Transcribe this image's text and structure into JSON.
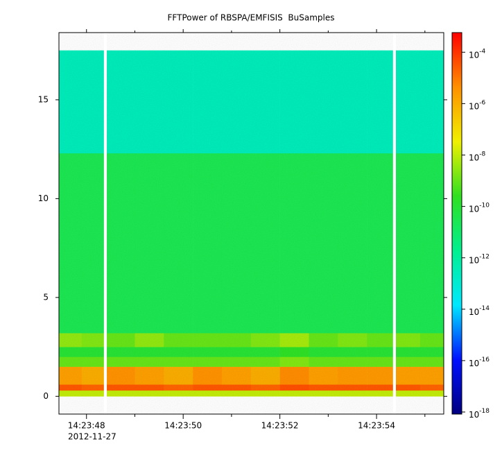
{
  "chart_data": {
    "type": "spectrogram",
    "title": "FFTPower of RBSPA/EMFISIS  BuSamples",
    "x_sublabel": "2012-11-27",
    "xlim": [
      47.43,
      55.39
    ],
    "xticks": [
      {
        "value": 48,
        "label": "14:23:48"
      },
      {
        "value": 50,
        "label": "14:23:50"
      },
      {
        "value": 52,
        "label": "14:23:52"
      },
      {
        "value": 54,
        "label": "14:23:54"
      }
    ],
    "xminorticks": [
      49,
      51,
      53,
      55
    ],
    "ylim": [
      -0.9,
      18.4
    ],
    "yticks": [
      0,
      5,
      10,
      15
    ],
    "zlim": [
      8.3e-19,
      0.00058
    ],
    "zlog": true,
    "zticks": [
      {
        "value": 0.0001,
        "base": "10",
        "exponent": "-4"
      },
      {
        "value": 1e-06,
        "base": "10",
        "exponent": "-6"
      },
      {
        "value": 1e-08,
        "base": "10",
        "exponent": "-8"
      },
      {
        "value": 1e-10,
        "base": "10",
        "exponent": "-10"
      },
      {
        "value": 1e-12,
        "base": "10",
        "exponent": "-12"
      },
      {
        "value": 1e-14,
        "base": "10",
        "exponent": "-14"
      },
      {
        "value": 1e-16,
        "base": "10",
        "exponent": "-16"
      },
      {
        "value": 1e-18,
        "base": "10",
        "exponent": "-18"
      }
    ],
    "colormap": [
      "#000080",
      "#0010ff",
      "#00e8ff",
      "#00f090",
      "#30e020",
      "#f0f000",
      "#ff9000",
      "#ff0000"
    ],
    "time_bins": [
      47.43,
      47.9,
      48.36,
      48.42,
      49.0,
      49.6,
      50.2,
      50.8,
      51.4,
      52.0,
      52.6,
      53.2,
      53.8,
      54.34,
      54.4,
      54.9,
      55.39
    ],
    "freq_bins": [
      0,
      0.3,
      0.6,
      1.5,
      2.0,
      2.5,
      3.2,
      12.3,
      17.5
    ],
    "power": [
      [
        1e-08,
        3e-05,
        2e-06,
        1e-09,
        1e-10,
        3e-09,
        3e-11,
        3e-13
      ],
      [
        1e-08,
        2e-05,
        1e-06,
        1e-09,
        1e-10,
        2e-09,
        3e-11,
        3e-13
      ],
      [
        null,
        null,
        null,
        null,
        null,
        null,
        null,
        null
      ],
      [
        1e-08,
        3e-05,
        4e-06,
        1e-09,
        1e-10,
        1e-09,
        3e-11,
        3e-13
      ],
      [
        1e-08,
        3e-05,
        2e-06,
        1e-09,
        1e-10,
        3e-09,
        3e-11,
        3e-13
      ],
      [
        1e-08,
        2e-05,
        1e-06,
        1e-09,
        1e-10,
        1e-09,
        3e-11,
        3e-13
      ],
      [
        1e-08,
        3e-05,
        4e-06,
        1e-09,
        1e-10,
        1e-09,
        3e-11,
        3e-13
      ],
      [
        1e-08,
        3e-05,
        2e-06,
        1e-09,
        1e-10,
        1e-09,
        3e-11,
        3e-13
      ],
      [
        1e-08,
        2e-05,
        1e-06,
        1e-09,
        1e-10,
        2e-09,
        3e-11,
        3e-13
      ],
      [
        1e-08,
        4e-05,
        5e-06,
        2e-09,
        2e-10,
        5e-09,
        3e-11,
        3e-13
      ],
      [
        1e-08,
        3e-05,
        2e-06,
        1e-09,
        1e-10,
        1e-09,
        3e-11,
        3e-13
      ],
      [
        1e-08,
        3e-05,
        3e-06,
        1e-09,
        1e-10,
        2e-09,
        3e-11,
        3e-13
      ],
      [
        1e-08,
        3e-05,
        3e-06,
        1e-09,
        1e-10,
        1e-09,
        3e-11,
        3e-13
      ],
      [
        null,
        null,
        null,
        null,
        null,
        null,
        null,
        null
      ],
      [
        1e-08,
        3e-05,
        2e-06,
        1e-09,
        1e-10,
        2e-09,
        3e-11,
        3e-13
      ],
      [
        1e-08,
        2e-05,
        2e-06,
        1e-09,
        1e-10,
        1e-09,
        3e-11,
        3e-13
      ]
    ]
  }
}
